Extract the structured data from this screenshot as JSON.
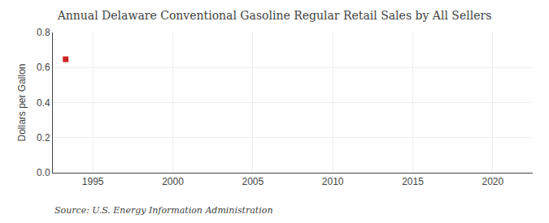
{
  "chart_data": {
    "type": "scatter",
    "title": "Annual Delaware Conventional Gasoline Regular Retail Sales by All Sellers",
    "ylabel": "Dollars per Gallon",
    "annotations": [
      "Source: U.S. Energy Information Administration"
    ],
    "x": [
      1993.3
    ],
    "values": [
      0.647
    ],
    "color": "#cc2222",
    "marker": "square",
    "xlim": [
      1992.5,
      2022.5
    ],
    "xticks": [
      1995,
      2000,
      2005,
      2010,
      2015,
      2020
    ],
    "ylim": [
      0.0,
      0.8
    ],
    "yticks": [
      {
        "value": 0.0,
        "label": "0.0"
      },
      0.2,
      0.4,
      0.6,
      0.8
    ],
    "grid": true
  }
}
